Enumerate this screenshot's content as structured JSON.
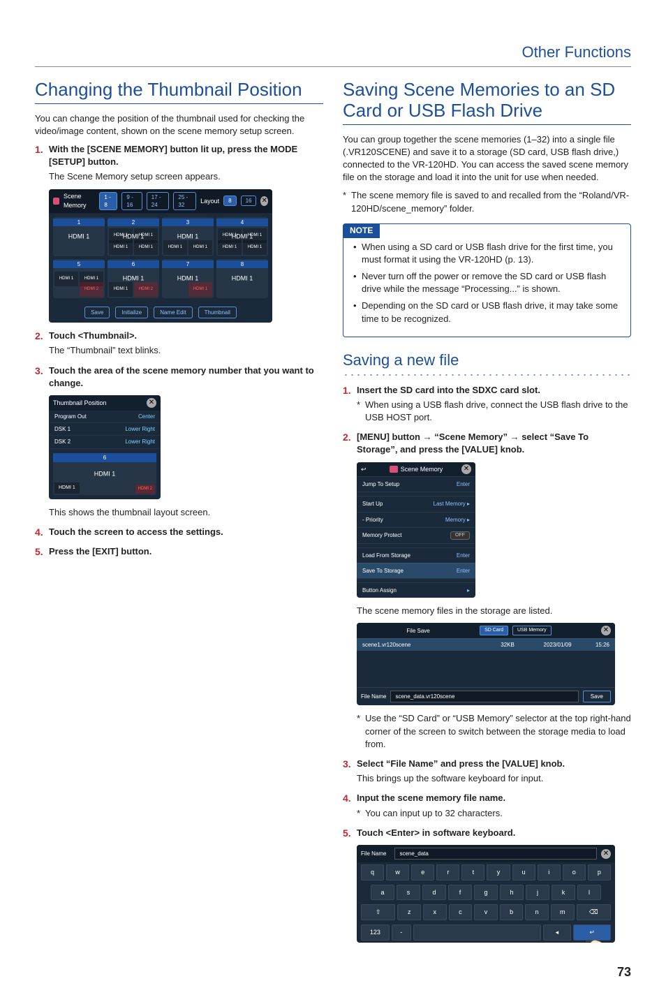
{
  "page": {
    "section": "Other Functions",
    "number": "73"
  },
  "left": {
    "heading": "Changing the Thumbnail Position",
    "intro": "You can change the position of the thumbnail used for checking the video/image content, shown on the scene memory setup screen.",
    "steps": [
      {
        "n": "1.",
        "main": "With the [SCENE MEMORY] button lit up, press the MODE [SETUP] button.",
        "sub": "The Scene Memory setup screen appears."
      },
      {
        "n": "2.",
        "main": "Touch <Thumbnail>.",
        "sub": "The “Thumbnail” text blinks."
      },
      {
        "n": "3.",
        "main": "Touch the area of the scene memory number that you want to change."
      },
      {
        "n": "4.",
        "main": "Touch the screen to access the settings."
      },
      {
        "n": "5.",
        "main": "Press the [EXIT] button."
      }
    ],
    "after_thumb": "This shows the thumbnail layout screen.",
    "scene_ss": {
      "title": "Scene Memory",
      "pages": [
        "1 - 8",
        "9 - 16",
        "17 - 24",
        "25 - 32"
      ],
      "layout_label": "Layout",
      "layout_vals": [
        "8",
        "16"
      ],
      "cells": [
        {
          "n": "1",
          "lbl": "HDMI 1",
          "layout": "center"
        },
        {
          "n": "2",
          "lbl": "HDMI 1",
          "layout": "quad"
        },
        {
          "n": "3",
          "lbl": "HDMI 1",
          "layout": "quad-bottom"
        },
        {
          "n": "4",
          "lbl": "HDMI 1",
          "layout": "quad"
        },
        {
          "n": "5",
          "lbl": "",
          "layout": "dual-red"
        },
        {
          "n": "6",
          "lbl": "HDMI 1",
          "layout": "dual"
        },
        {
          "n": "7",
          "lbl": "HDMI 1",
          "layout": "dual-red-r"
        },
        {
          "n": "8",
          "lbl": "HDMI 1",
          "layout": "center"
        }
      ],
      "buttons": [
        "Save",
        "Initialize",
        "Name Edit",
        "Thumbnail"
      ]
    },
    "thumb_ss": {
      "title": "Thumbnail Position",
      "rows": [
        {
          "k": "Program Out",
          "v": "Center"
        },
        {
          "k": "DSK 1",
          "v": "Lower Right"
        },
        {
          "k": "DSK 2",
          "v": "Lower Right"
        }
      ],
      "preview": {
        "n": "6",
        "center": "HDMI 1",
        "bl": "HDMI 1",
        "br": "HDMI 2"
      }
    }
  },
  "right": {
    "heading": "Saving Scene Memories to an SD Card or USB Flash Drive",
    "intro": "You can group together the scene memories (1–32) into a single file (.VR120SCENE) and save it to a storage (SD card, USB flash drive,) connected to the VR-120HD. You can access the saved scene memory file on the storage and load it into the unit for use when needed.",
    "intro_note": "The scene memory file is saved to and recalled from the “Roland/VR-120HD/scene_memory” folder.",
    "note_label": "NOTE",
    "notes": [
      "When using a SD card or USB flash drive for the first time, you must format it using the VR-120HD (p. 13).",
      "Never turn off the power or remove the SD card or USB flash drive while the message “Processing...” is shown.",
      "Depending on the SD card or USB flash drive, it may take some time to be recognized."
    ],
    "h2": "Saving a new file",
    "steps": [
      {
        "n": "1.",
        "main": "Insert the SD card into the SDXC card slot.",
        "note": "When using a USB flash drive, connect the USB flash drive to the USB HOST port."
      },
      {
        "n": "2.",
        "main_parts": [
          "[MENU] button ",
          "→",
          " “Scene Memory” ",
          "→",
          " select “Save To Storage”, and press the [VALUE] knob."
        ]
      },
      {
        "n": "3.",
        "main": "Select “File Name” and press the [VALUE] knob.",
        "sub": "This brings up the software keyboard for input."
      },
      {
        "n": "4.",
        "main": "Input the scene memory file name.",
        "note": "You can input up to 32 characters."
      },
      {
        "n": "5.",
        "main": "Touch <Enter> in software keyboard."
      }
    ],
    "after_menu": "The scene memory files in the storage are listed.",
    "after_files": "Use the “SD Card” or “USB Memory” selector at the top right-hand corner of the screen to switch between the storage media to load from.",
    "menu_ss": {
      "title": "Scene Memory",
      "rows": [
        {
          "k": "Jump To Setup",
          "v": "Enter"
        },
        {
          "k": "Start Up",
          "v": "Last Memory ▸"
        },
        {
          "k": "- Priority",
          "v": "Memory ▸"
        },
        {
          "k": "Memory Protect",
          "v": "OFF",
          "toggle": true
        },
        {
          "k": "Load From Storage",
          "v": "Enter"
        },
        {
          "k": "Save To Storage",
          "v": "Enter",
          "hl": true
        },
        {
          "k": "Button Assign",
          "v": "▸"
        }
      ]
    },
    "files_ss": {
      "title": "File Save",
      "tabs": [
        "SD Card",
        "USB Memory"
      ],
      "rows": [
        {
          "name": "scene1.vr120scene",
          "size": "32KB",
          "date": "2023/01/09",
          "time": "15:26"
        }
      ],
      "file_label": "File Name",
      "file_name": "scene_data.vr120scene",
      "save": "Save"
    },
    "kb_ss": {
      "file_label": "File Name",
      "file_name": "scene_data",
      "rows": [
        [
          "q",
          "w",
          "e",
          "r",
          "t",
          "y",
          "u",
          "i",
          "o",
          "p"
        ],
        [
          "a",
          "s",
          "d",
          "f",
          "g",
          "h",
          "j",
          "k",
          "l"
        ],
        [
          "⇧",
          "z",
          "x",
          "c",
          "v",
          "b",
          "n",
          "m",
          "⌫"
        ],
        [
          "123",
          "-",
          " ",
          "◂",
          "↵"
        ]
      ]
    }
  }
}
